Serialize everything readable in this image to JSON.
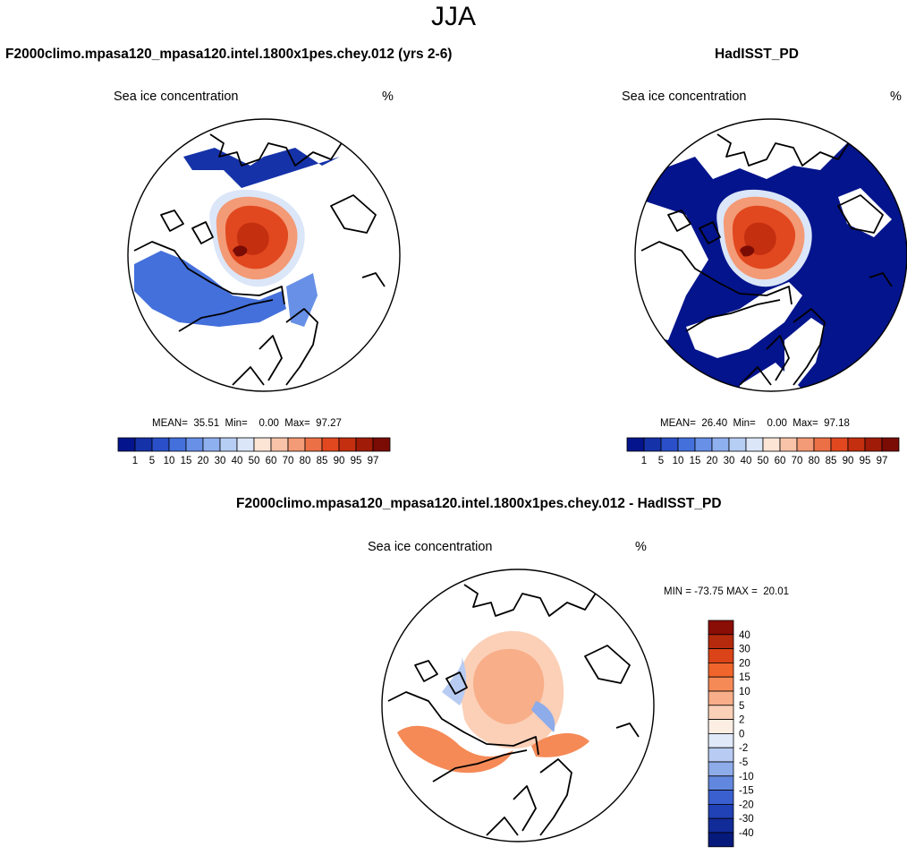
{
  "figure": {
    "title": "JJA"
  },
  "panels": [
    {
      "title": "F2000climo.mpasa120_mpasa120.intel.1800x1pes.chey.012 (yrs 2-6)",
      "left_label": "Sea ice concentration",
      "right_label": "%",
      "stats": "MEAN=  35.51  Min=    0.00  Max=  97.27"
    },
    {
      "title": "HadISST_PD",
      "left_label": "Sea ice concentration",
      "right_label": "%",
      "stats": "MEAN=  26.40  Min=    0.00  Max=  97.18"
    },
    {
      "title": "F2000climo.mpasa120_mpasa120.intel.1800x1pes.chey.012 - HadISST_PD",
      "left_label": "Sea ice concentration",
      "right_label": "%",
      "stats": "MIN = -73.75 MAX =  20.01"
    }
  ],
  "chart_data": [
    {
      "type": "heatmap",
      "title": "F2000climo.mpasa120_mpasa120.intel.1800x1pes.chey.012 (yrs 2-6)",
      "projection": "north polar stereographic",
      "variable": "Sea ice concentration",
      "units": "%",
      "mean": 35.51,
      "min": 0.0,
      "max": 97.27,
      "colorbar_levels": [
        "1",
        "5",
        "10",
        "15",
        "20",
        "30",
        "40",
        "50",
        "60",
        "70",
        "80",
        "85",
        "90",
        "95",
        "97"
      ],
      "colorbar_colors": [
        "#04148c",
        "#1532a8",
        "#2a4fc8",
        "#4470dc",
        "#6790e6",
        "#8fb0ee",
        "#b6cdf4",
        "#dbe6f8",
        "#fde5d6",
        "#f8c3a8",
        "#f39a76",
        "#ec7046",
        "#e1481f",
        "#c42f10",
        "#a01c09",
        "#7a0c05"
      ]
    },
    {
      "type": "heatmap",
      "title": "HadISST_PD",
      "projection": "north polar stereographic",
      "variable": "Sea ice concentration",
      "units": "%",
      "mean": 26.4,
      "min": 0.0,
      "max": 97.18,
      "colorbar_levels": [
        "1",
        "5",
        "10",
        "15",
        "20",
        "30",
        "40",
        "50",
        "60",
        "70",
        "80",
        "85",
        "90",
        "95",
        "97"
      ],
      "colorbar_colors": [
        "#04148c",
        "#1532a8",
        "#2a4fc8",
        "#4470dc",
        "#6790e6",
        "#8fb0ee",
        "#b6cdf4",
        "#dbe6f8",
        "#fde5d6",
        "#f8c3a8",
        "#f39a76",
        "#ec7046",
        "#e1481f",
        "#c42f10",
        "#a01c09",
        "#7a0c05"
      ]
    },
    {
      "type": "heatmap",
      "title": "F2000climo.mpasa120_mpasa120.intel.1800x1pes.chey.012 - HadISST_PD",
      "projection": "north polar stereographic",
      "variable": "Sea ice concentration",
      "units": "%",
      "min": -73.75,
      "max": 20.01,
      "colorbar_levels": [
        "40",
        "30",
        "20",
        "15",
        "10",
        "5",
        "2",
        "0",
        "-2",
        "-5",
        "-10",
        "-15",
        "-20",
        "-30",
        "-40"
      ],
      "colorbar_colors": [
        "#8a0d06",
        "#b52a0c",
        "#db4418",
        "#f0652b",
        "#f58a57",
        "#f8ae88",
        "#fbd0b7",
        "#fdeee3",
        "#dfe9f8",
        "#b8cbf2",
        "#8eabea",
        "#6287df",
        "#3a60d0",
        "#2141b6",
        "#112b98",
        "#061a7c"
      ]
    }
  ],
  "colors": {
    "land_outline": "#000000",
    "background": "#ffffff"
  }
}
